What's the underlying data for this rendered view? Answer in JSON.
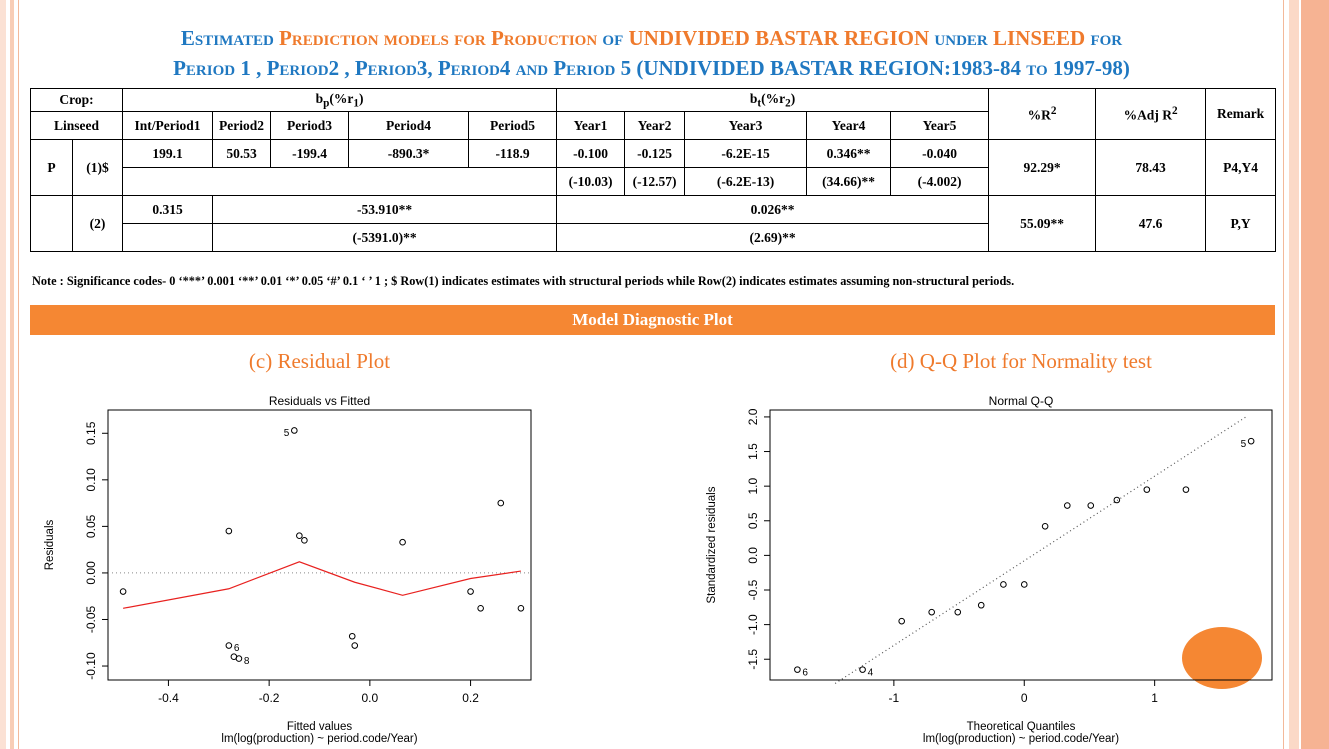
{
  "header": {
    "line1": [
      "Estimated",
      "Prediction models for",
      "Production",
      "of",
      "UNDIVIDED BASTAR REGION",
      "under",
      "LINSEED",
      "for"
    ],
    "line2": "Period 1 , Period2 , Period3, Period4 and Period 5 (UNDIVIDED BASTAR REGION:1983-84 to 1997-98)"
  },
  "table": {
    "head": [
      "Crop:",
      [
        "b",
        "p",
        "(%r",
        "1",
        ")"
      ],
      [
        "b",
        "t",
        "(%r",
        "2",
        ")"
      ],
      [
        "%R",
        "2"
      ],
      [
        "%Adj R",
        "2"
      ],
      "Remark"
    ],
    "subhead": [
      "Linseed",
      "Int/Period1",
      "Period2",
      "Period3",
      "Period4",
      "Period5",
      "Year1",
      "Year2",
      "Year3",
      "Year4",
      "Year5"
    ],
    "rows": [
      {
        "crop": "P",
        "model": "(1)$",
        "estimates": [
          "199.1",
          "50.53",
          "-199.4",
          "-890.3*",
          "-118.9",
          "-0.100",
          "-0.125",
          "-6.2E-15",
          "0.346**",
          "-0.040"
        ],
        "t_values": [
          "(-10.03)",
          "(-12.57)",
          "(-6.2E-13)",
          "(34.66)**",
          "(-4.002)"
        ],
        "r2": "92.29*",
        "adj_r2": "78.43",
        "remark": "P4,Y4"
      },
      {
        "model": "(2)",
        "estimates": [
          "0.315",
          "-53.910**",
          "0.026**"
        ],
        "t_values": [
          "(-5391.0)**",
          "(2.69)**"
        ],
        "r2": "55.09**",
        "adj_r2": "47.6",
        "remark": "P,Y"
      }
    ]
  },
  "note": "Note : Significance codes-  0 ‘***’ 0.001 ‘**’ 0.01 ‘*’ 0.05 ‘#’ 0.1 ‘ ’ 1 ; $ Row(1) indicates estimates with structural periods while Row(2) indicates estimates assuming non-structural periods.",
  "banner": "Model Diagnostic Plot",
  "chart_data": [
    {
      "type": "scatter",
      "panel_title": "(c) Residual Plot",
      "title": "Residuals vs Fitted",
      "x_label": "Fitted values",
      "y_label": "Residuals",
      "subtitle": "lm(log(production) ~ period.code/Year)",
      "x": [
        -0.49,
        -0.28,
        -0.28,
        -0.27,
        -0.26,
        -0.15,
        -0.14,
        -0.13,
        -0.035,
        -0.03,
        0.065,
        0.2,
        0.22,
        0.26,
        0.3
      ],
      "y": [
        -0.02,
        0.045,
        -0.078,
        -0.09,
        -0.092,
        0.153,
        0.04,
        0.035,
        -0.068,
        -0.078,
        0.033,
        -0.02,
        -0.038,
        0.075,
        -0.038
      ],
      "point_labels": [
        null,
        null,
        "6",
        null,
        "8",
        "5",
        null,
        null,
        null,
        null,
        null,
        null,
        null,
        null,
        null
      ],
      "line": {
        "x": [
          -0.49,
          -0.28,
          -0.14,
          -0.03,
          0.065,
          0.2,
          0.3
        ],
        "y": [
          -0.038,
          -0.017,
          0.012,
          -0.01,
          -0.024,
          -0.006,
          0.002
        ],
        "color": "#e8211f",
        "style": "solid"
      },
      "hline": 0,
      "xlim": [
        -0.52,
        0.32
      ],
      "ylim": [
        -0.115,
        0.175
      ],
      "xticks": [
        -0.4,
        -0.2,
        {
          "value": 0,
          "label": "0.0"
        },
        0.2
      ],
      "yticks": [
        {
          "value": -0.1,
          "label": "-0.10"
        },
        {
          "value": -0.05,
          "label": "-0.05"
        },
        {
          "value": 0,
          "label": "0.00"
        },
        {
          "value": 0.05,
          "label": "0.05"
        },
        {
          "value": 0.1,
          "label": "0.10"
        },
        0.15
      ]
    },
    {
      "type": "scatter",
      "panel_title": "(d) Q-Q Plot for Normality test",
      "title": "Normal Q-Q",
      "x_label": "Theoretical Quantiles",
      "y_label": "Standardized residuals",
      "subtitle": "lm(log(production) ~ period.code/Year)",
      "x": [
        -1.74,
        -1.24,
        -0.94,
        -0.71,
        -0.51,
        -0.33,
        -0.16,
        0,
        0.16,
        0.33,
        0.51,
        0.71,
        0.94,
        1.24,
        1.74
      ],
      "y": [
        -1.65,
        -1.65,
        -0.95,
        -0.82,
        -0.82,
        -0.72,
        -0.42,
        -0.42,
        0.42,
        0.72,
        0.72,
        0.8,
        0.95,
        0.95,
        1.65
      ],
      "point_labels": [
        "6",
        "4",
        null,
        null,
        null,
        null,
        null,
        null,
        null,
        null,
        null,
        null,
        null,
        null,
        "5"
      ],
      "line": {
        "x": [
          -1.45,
          1.7
        ],
        "y": [
          -1.85,
          2.0
        ],
        "color": "#555555",
        "style": "dotted"
      },
      "xlim": [
        -1.95,
        1.9
      ],
      "ylim": [
        -1.8,
        2.1
      ],
      "xticks": [
        -1,
        0,
        1
      ],
      "yticks": [
        -1.5,
        {
          "value": -1,
          "label": "-1.0"
        },
        -0.5,
        {
          "value": 0,
          "label": "0.0"
        },
        0.5,
        {
          "value": 1,
          "label": "1.0"
        },
        1.5,
        {
          "value": 2,
          "label": "2.0"
        }
      ]
    }
  ]
}
